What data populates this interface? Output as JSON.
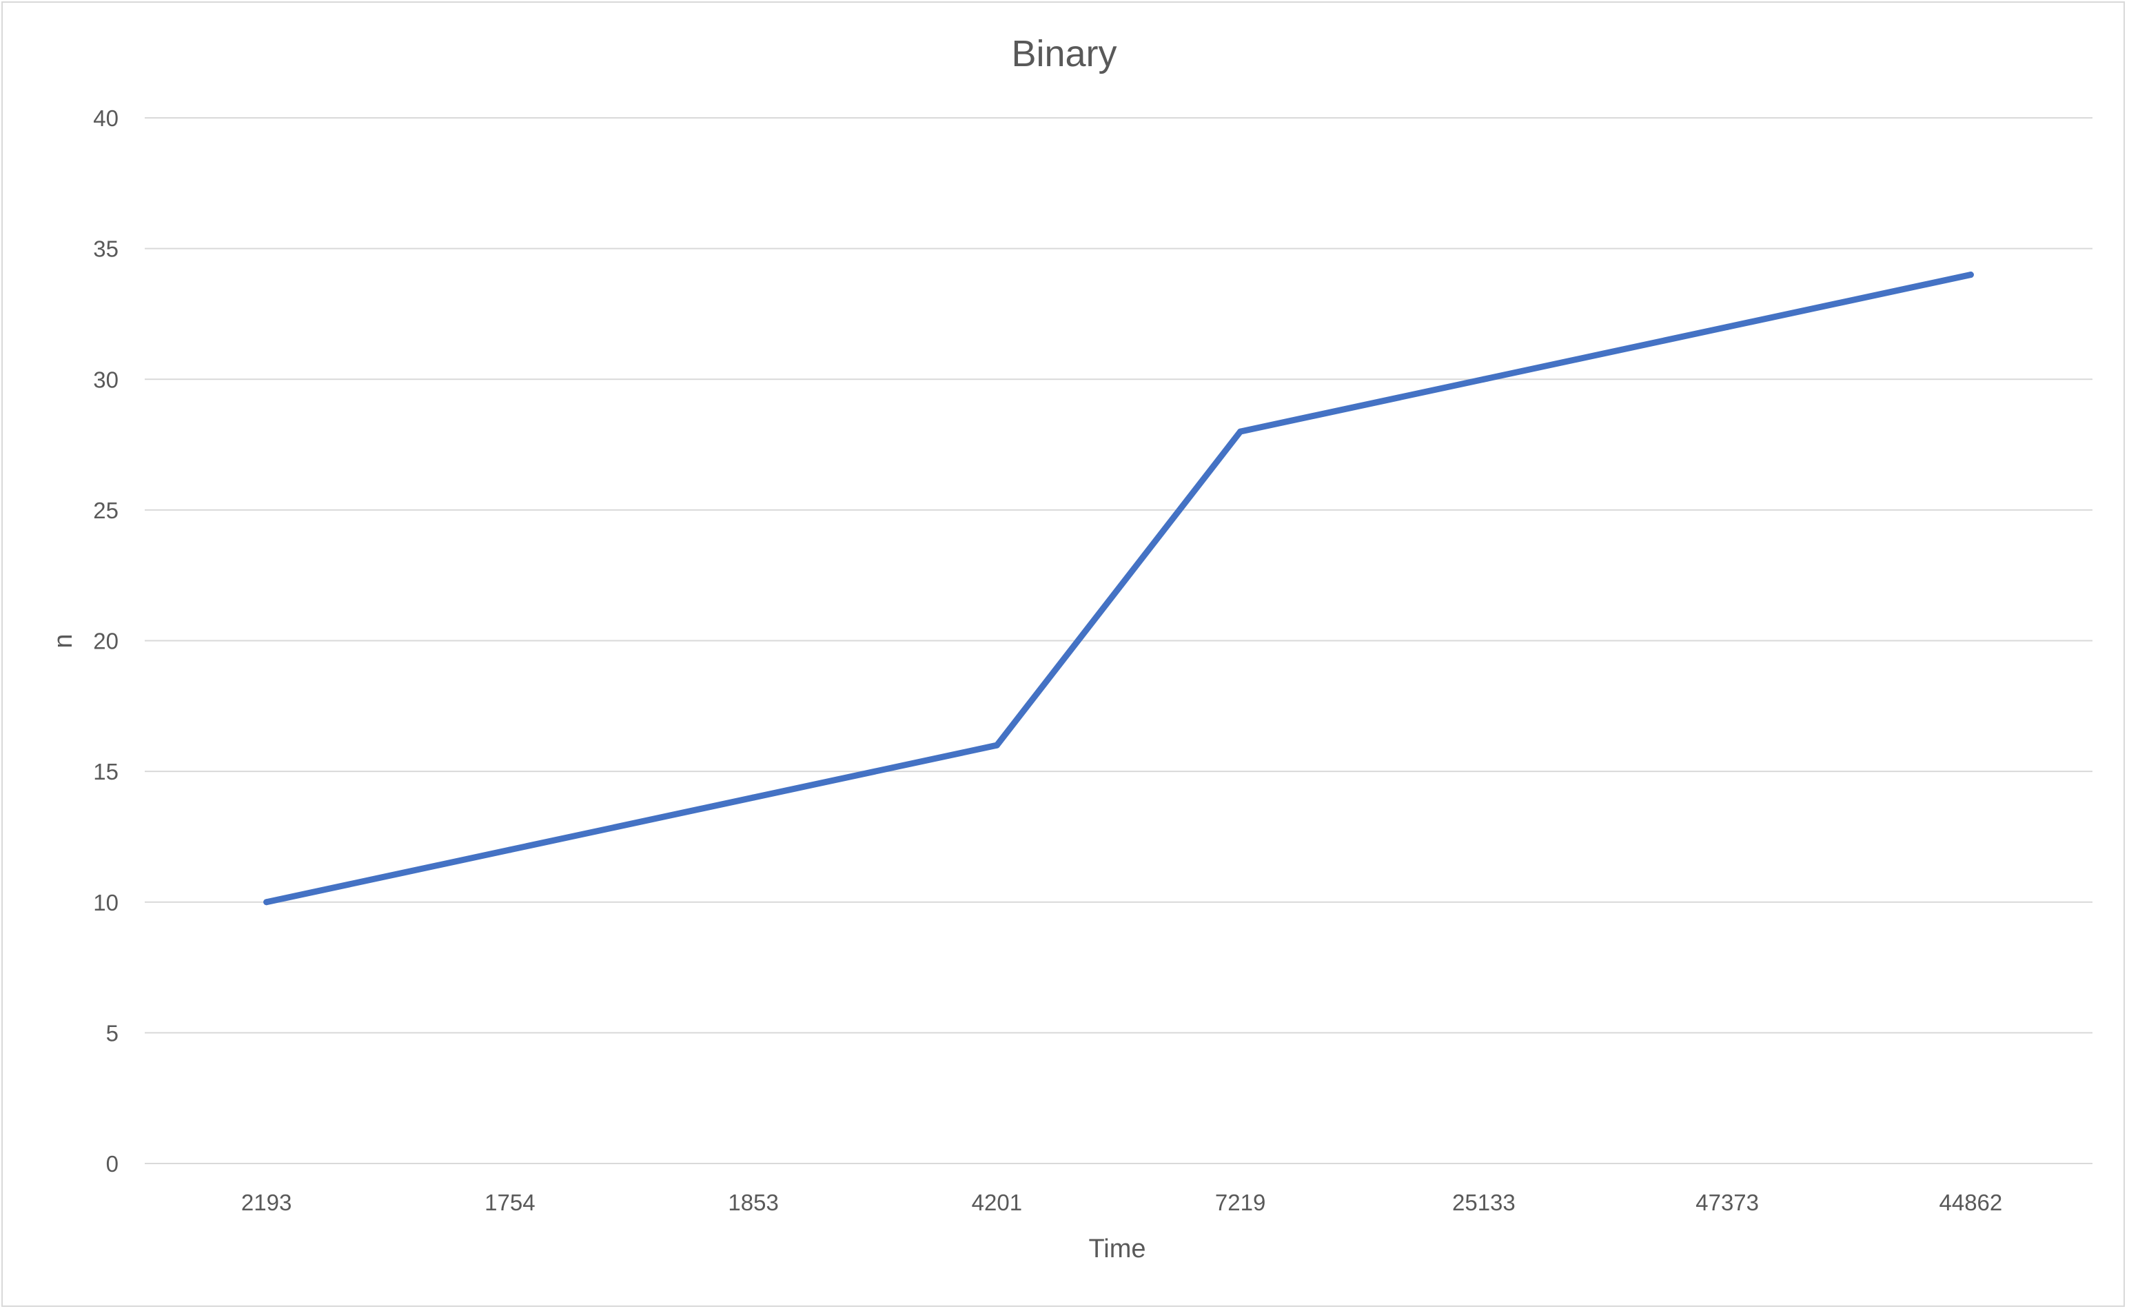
{
  "chart_data": {
    "type": "line",
    "title": "Binary",
    "xlabel": "Time",
    "ylabel": "n",
    "categories": [
      "2193",
      "1754",
      "1853",
      "4201",
      "7219",
      "25133",
      "47373",
      "44862"
    ],
    "series": [
      {
        "values": [
          10,
          12,
          14,
          16,
          28,
          30,
          32,
          34
        ],
        "color": "#4472c4"
      }
    ],
    "ylim": [
      0,
      40
    ],
    "y_ticks": [
      0,
      5,
      10,
      15,
      20,
      25,
      30,
      35,
      40
    ],
    "grid": "horizontal",
    "gridColor": "#d9d9d9",
    "textColor": "#595959"
  }
}
